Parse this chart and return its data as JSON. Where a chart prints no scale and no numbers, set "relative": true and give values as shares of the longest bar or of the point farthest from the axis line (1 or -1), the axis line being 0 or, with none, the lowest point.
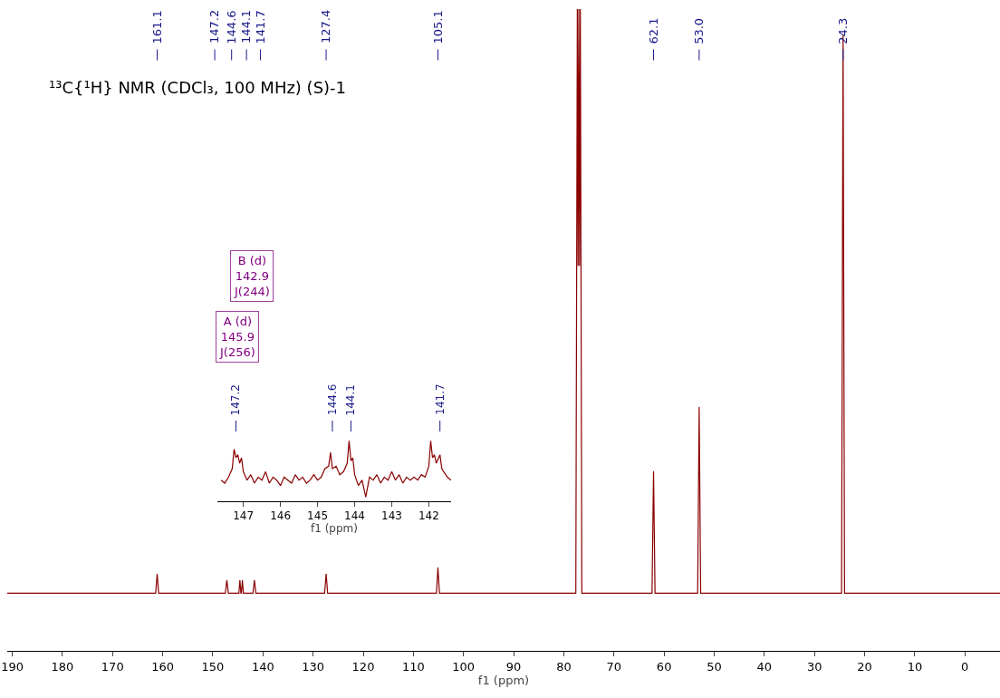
{
  "chart_data": [
    {
      "type": "line",
      "title": "¹³C{¹H} NMR (CDCl₃, 100 MHz) (S)-1",
      "xlabel": "f1 (ppm)",
      "relative": true,
      "color": "#8b0000",
      "xlim": [
        191,
        -7
      ],
      "xticks": [
        190,
        180,
        170,
        160,
        150,
        140,
        130,
        120,
        110,
        100,
        90,
        80,
        70,
        60,
        50,
        40,
        30,
        20,
        10,
        0
      ],
      "x": [
        191,
        161.4,
        161.1,
        160.8,
        147.5,
        147.2,
        146.9,
        144.8,
        144.6,
        144.4,
        144.3,
        144.1,
        143.9,
        142.0,
        141.7,
        141.4,
        127.7,
        127.4,
        127.1,
        105.4,
        105.1,
        104.8,
        77.6,
        77.3,
        77.15,
        77.0,
        76.85,
        76.7,
        76.4,
        62.4,
        62.1,
        61.8,
        53.3,
        53.0,
        52.7,
        24.6,
        24.3,
        24.0,
        -7
      ],
      "values": [
        0.09,
        0.09,
        0.12,
        0.09,
        0.09,
        0.11,
        0.09,
        0.09,
        0.11,
        0.09,
        0.09,
        0.11,
        0.09,
        0.09,
        0.11,
        0.09,
        0.09,
        0.12,
        0.09,
        0.09,
        0.13,
        0.09,
        0.09,
        1,
        0.6,
        1,
        0.6,
        1,
        0.09,
        0.09,
        0.28,
        0.09,
        0.09,
        0.38,
        0.09,
        0.09,
        0.96,
        0.09,
        0.09
      ],
      "annotations": [
        {
          "text": "161.1",
          "x": 161.1
        },
        "147.2",
        "144.6",
        "144.1",
        "141.7",
        {
          "text": "127.4",
          "x": 127.4
        },
        {
          "text": "105.1",
          "x": 105.1
        },
        {
          "text": "62.1",
          "x": 62.1
        },
        {
          "text": "53.0",
          "x": 53.0
        },
        {
          "text": "24.3",
          "x": 24.3
        }
      ]
    },
    {
      "type": "line",
      "xlabel": "f1 (ppm)",
      "relative": true,
      "color": "#8b0000",
      "xlim": [
        147.7,
        141.4
      ],
      "xticks": [
        147,
        146,
        145,
        144,
        143,
        142
      ],
      "x": [
        147.6,
        147.5,
        147.4,
        147.3,
        147.25,
        147.2,
        147.15,
        147.1,
        147.05,
        147.0,
        146.9,
        146.8,
        146.7,
        146.6,
        146.5,
        146.4,
        146.3,
        146.2,
        146.1,
        146.0,
        145.9,
        145.8,
        145.7,
        145.6,
        145.5,
        145.4,
        145.3,
        145.2,
        145.1,
        145.0,
        144.9,
        144.8,
        144.7,
        144.65,
        144.6,
        144.5,
        144.4,
        144.3,
        144.2,
        144.15,
        144.1,
        144.05,
        144.0,
        143.9,
        143.8,
        143.7,
        143.6,
        143.5,
        143.4,
        143.3,
        143.2,
        143.1,
        143.0,
        142.9,
        142.8,
        142.7,
        142.6,
        142.5,
        142.4,
        142.3,
        142.2,
        142.1,
        142.0,
        141.95,
        141.9,
        141.85,
        141.8,
        141.7,
        141.65,
        141.6,
        141.5,
        141.4
      ],
      "values": [
        0.35,
        0.3,
        0.4,
        0.54,
        0.86,
        0.72,
        0.77,
        0.63,
        0.72,
        0.49,
        0.35,
        0.44,
        0.3,
        0.4,
        0.35,
        0.49,
        0.3,
        0.4,
        0.35,
        0.26,
        0.4,
        0.35,
        0.3,
        0.44,
        0.35,
        0.4,
        0.3,
        0.35,
        0.44,
        0.35,
        0.4,
        0.54,
        0.58,
        0.81,
        0.54,
        0.58,
        0.44,
        0.49,
        0.63,
        1,
        0.67,
        0.72,
        0.44,
        0.26,
        0.35,
        0.07,
        0.4,
        0.35,
        0.44,
        0.3,
        0.4,
        0.35,
        0.49,
        0.35,
        0.44,
        0.3,
        0.4,
        0.35,
        0.4,
        0.35,
        0.44,
        0.4,
        0.58,
        1,
        0.72,
        0.77,
        0.63,
        0.77,
        0.54,
        0.49,
        0.4,
        0.35
      ],
      "annotations": [
        {
          "text": "147.2",
          "x": 147.2
        },
        {
          "text": "144.6",
          "x": 144.6
        },
        {
          "text": "144.1",
          "x": 144.1
        },
        {
          "text": "141.7",
          "x": 141.7
        },
        "B (d)\n142.9\nJ(244)",
        "A (d)\n145.9\nJ(256)"
      ]
    }
  ]
}
